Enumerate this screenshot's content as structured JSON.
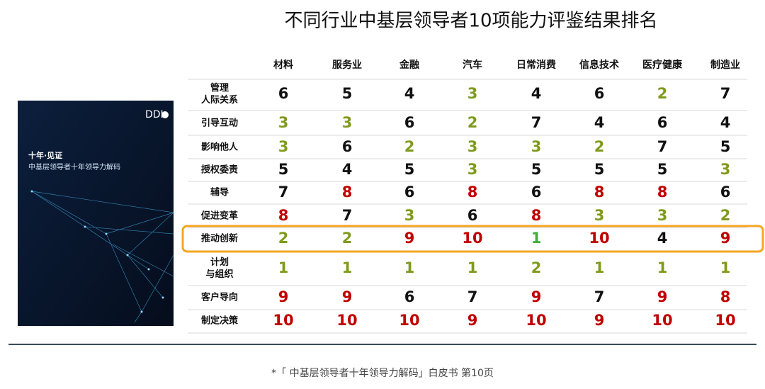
{
  "header": {
    "title": "不同行业中基层领导者10项能力评鉴结果排名"
  },
  "cover": {
    "brand": "DDI",
    "title": "十年·见证",
    "subtitle": "中基层领导者十年领导力解码"
  },
  "table": {
    "columns": [
      "材料",
      "服务业",
      "金融",
      "汽车",
      "日常消费",
      "信息技术",
      "医疗健康",
      "制造业"
    ],
    "highlight_color": "#f5a623",
    "rows": [
      {
        "label": [
          "管理",
          "人际关系"
        ],
        "values": [
          6,
          5,
          4,
          3,
          4,
          6,
          2,
          7
        ],
        "colors": [
          "#111111",
          "#111111",
          "#111111",
          "#7f9a1c",
          "#111111",
          "#111111",
          "#7f9a1c",
          "#111111"
        ]
      },
      {
        "label": [
          "引导互动"
        ],
        "values": [
          3,
          3,
          6,
          2,
          7,
          4,
          6,
          4
        ],
        "colors": [
          "#7f9a1c",
          "#7f9a1c",
          "#111111",
          "#7f9a1c",
          "#111111",
          "#111111",
          "#111111",
          "#111111"
        ]
      },
      {
        "label": [
          "影响他人"
        ],
        "values": [
          3,
          6,
          2,
          3,
          3,
          2,
          7,
          5
        ],
        "colors": [
          "#7f9a1c",
          "#111111",
          "#7f9a1c",
          "#7f9a1c",
          "#7f9a1c",
          "#7f9a1c",
          "#111111",
          "#111111"
        ]
      },
      {
        "label": [
          "授权委责"
        ],
        "values": [
          5,
          4,
          5,
          3,
          5,
          5,
          5,
          3
        ],
        "colors": [
          "#111111",
          "#111111",
          "#111111",
          "#7f9a1c",
          "#111111",
          "#111111",
          "#111111",
          "#7f9a1c"
        ]
      },
      {
        "label": [
          "辅导"
        ],
        "values": [
          7,
          8,
          6,
          8,
          6,
          8,
          8,
          6
        ],
        "colors": [
          "#111111",
          "#c00000",
          "#111111",
          "#c00000",
          "#111111",
          "#c00000",
          "#c00000",
          "#111111"
        ]
      },
      {
        "label": [
          "促进变革"
        ],
        "values": [
          8,
          7,
          3,
          6,
          8,
          3,
          3,
          2
        ],
        "colors": [
          "#c00000",
          "#111111",
          "#7f9a1c",
          "#111111",
          "#c00000",
          "#7f9a1c",
          "#7f9a1c",
          "#7f9a1c"
        ]
      },
      {
        "label": [
          "推动创新"
        ],
        "values": [
          2,
          2,
          9,
          10,
          1,
          10,
          4,
          9
        ],
        "colors": [
          "#7f9a1c",
          "#7f9a1c",
          "#c00000",
          "#c00000",
          "#3cae3c",
          "#c00000",
          "#111111",
          "#c00000"
        ],
        "highlight": true
      },
      {
        "label": [
          "计划",
          "与组织"
        ],
        "values": [
          1,
          1,
          1,
          1,
          2,
          1,
          1,
          1
        ],
        "colors": [
          "#7f9a1c",
          "#7f9a1c",
          "#7f9a1c",
          "#7f9a1c",
          "#7f9a1c",
          "#7f9a1c",
          "#7f9a1c",
          "#7f9a1c"
        ]
      },
      {
        "label": [
          "客户导向"
        ],
        "values": [
          9,
          9,
          6,
          7,
          9,
          7,
          9,
          8
        ],
        "colors": [
          "#c00000",
          "#c00000",
          "#111111",
          "#111111",
          "#c00000",
          "#111111",
          "#c00000",
          "#c00000"
        ]
      },
      {
        "label": [
          "制定决策"
        ],
        "values": [
          10,
          10,
          10,
          9,
          10,
          9,
          10,
          10
        ],
        "colors": [
          "#c00000",
          "#c00000",
          "#c00000",
          "#c00000",
          "#c00000",
          "#c00000",
          "#c00000",
          "#c00000"
        ]
      }
    ]
  },
  "footnote": "*「 中基层领导者十年领导力解码」白皮书 第10页"
}
